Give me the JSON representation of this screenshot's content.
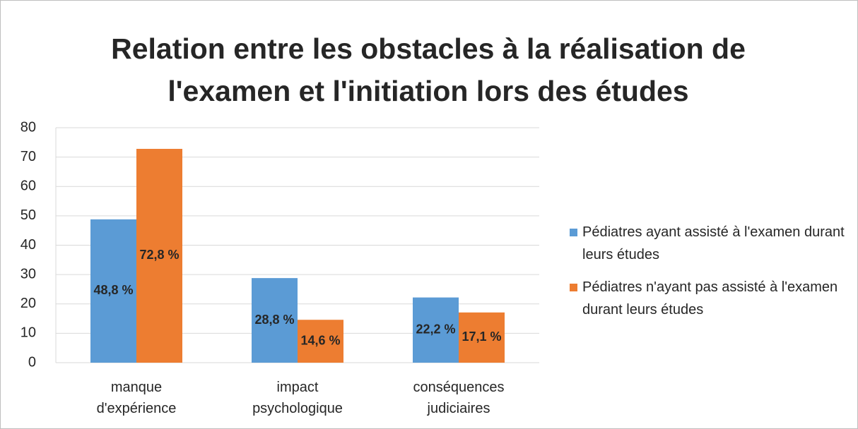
{
  "chart_data": {
    "type": "bar",
    "title": "Relation entre les obstacles à la réalisation de l'examen et l'initiation lors des études",
    "categories": [
      "manque d'expérience",
      "impact psychologique",
      "conséquences judiciaires"
    ],
    "series": [
      {
        "name": "Pédiatres ayant assisté à l'examen durant leurs études",
        "color": "#5b9bd5",
        "values": [
          48.8,
          28.8,
          22.2
        ],
        "value_labels": [
          "48,8 %",
          "28,8 %",
          "22,2 %"
        ]
      },
      {
        "name": "Pédiatres n'ayant pas assisté à l'examen durant leurs études",
        "color": "#ed7d31",
        "values": [
          72.8,
          14.6,
          17.1
        ],
        "value_labels": [
          "72,8 %",
          "14,6 %",
          "17,1 %"
        ]
      }
    ],
    "ylim": [
      0,
      80
    ],
    "yticks": [
      0,
      10,
      20,
      30,
      40,
      50,
      60,
      70,
      80
    ],
    "grid": true,
    "legend": "right"
  }
}
